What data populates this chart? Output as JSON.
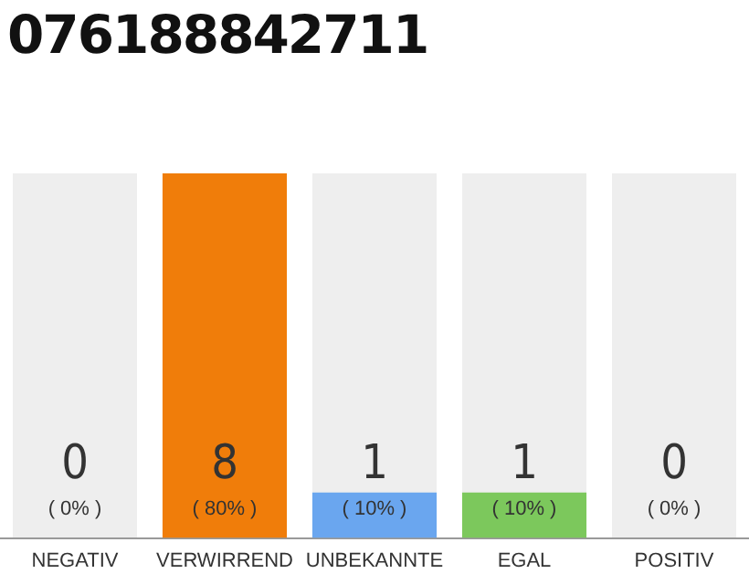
{
  "chart_data": {
    "type": "bar",
    "title": "076188842711",
    "categories": [
      "NEGATIV",
      "VERWIRREND",
      "UNBEKANNTE",
      "EGAL",
      "POSITIV"
    ],
    "values": [
      0,
      80,
      10,
      10,
      0
    ],
    "colors": [
      "#f07d0a",
      "#f07d0a",
      "#6aa6ef",
      "#7cc85c",
      "#f07d0a"
    ],
    "value_labels": [
      "( 0% )",
      "( 80% )",
      "( 10% )",
      "( 10% )",
      "( 0% )"
    ],
    "annotations": [
      "0",
      "8",
      "1",
      "1",
      "0"
    ],
    "tick_labels": "x",
    "grid": false,
    "legend": false
  }
}
